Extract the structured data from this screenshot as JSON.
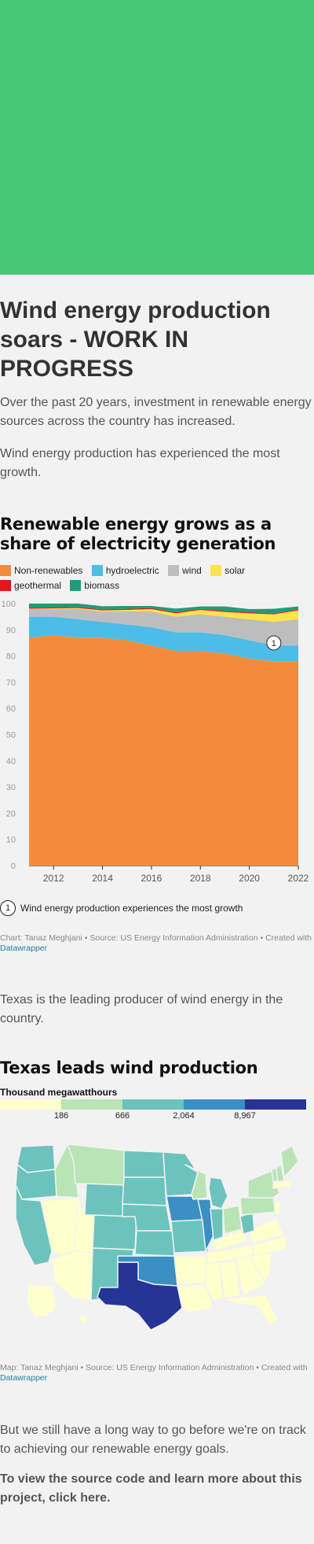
{
  "article": {
    "headline": "Wind energy production soars - WORK IN PROGRESS",
    "para1": "Over the past 20 years, investment in renewable energy sources across the country has increased.",
    "para2": "Wind energy production has experienced the most growth.",
    "para3": "Texas is the leading producer of wind energy in the country.",
    "para4": "But we still have a long way to go before we're on track to achieving our renewable energy goals.",
    "para5": "To view the source code and learn more about this project, click here."
  },
  "chart1": {
    "title": "Renewable energy grows as a share of electricity generation",
    "legend": [
      {
        "label": "Non-renewables",
        "color": "#f28c3c"
      },
      {
        "label": "hydroelectric",
        "color": "#4cbde6"
      },
      {
        "label": "wind",
        "color": "#bdbdbd"
      },
      {
        "label": "solar",
        "color": "#fbe34a"
      },
      {
        "label": "geothermal",
        "color": "#e8141b"
      },
      {
        "label": "biomass",
        "color": "#1f9c7c"
      }
    ],
    "annotation_number": "1",
    "annotation_text": "Wind energy production experiences the most growth",
    "credit_text": "Chart: Tanaz Meghjani • Source: US Energy Information Administration • Created with ",
    "credit_link": "Datawrapper"
  },
  "chart_data": [
    {
      "type": "area",
      "title": "Renewable energy grows as a share of electricity generation",
      "xlabel": "",
      "ylabel": "",
      "xlim": [
        2011,
        2022
      ],
      "ylim": [
        0,
        100
      ],
      "x_ticks": [
        "2012",
        "2014",
        "2016",
        "2018",
        "2020",
        "2022"
      ],
      "y_ticks": [
        "0",
        "10",
        "20",
        "30",
        "40",
        "50",
        "60",
        "70",
        "80",
        "90",
        "100"
      ],
      "grid": true,
      "legend_position": "top",
      "x": [
        2011,
        2012,
        2013,
        2014,
        2015,
        2016,
        2017,
        2018,
        2019,
        2020,
        2021,
        2022
      ],
      "series": [
        {
          "name": "Non-renewables",
          "color": "#f28c3c",
          "values": [
            87,
            88,
            87,
            87,
            86,
            84,
            82,
            82,
            81,
            79,
            78,
            78
          ]
        },
        {
          "name": "hydroelectric",
          "color": "#4cbde6",
          "values": [
            8,
            7,
            7,
            6,
            6,
            7,
            7,
            7,
            7,
            7,
            6,
            6
          ]
        },
        {
          "name": "wind",
          "color": "#bdbdbd",
          "values": [
            3,
            3,
            4,
            4,
            5,
            6,
            6,
            7,
            7,
            8,
            9,
            10
          ]
        },
        {
          "name": "solar",
          "color": "#fbe34a",
          "values": [
            0.1,
            0.2,
            0.3,
            0.4,
            0.6,
            0.9,
            1.3,
            1.6,
            1.8,
            2.3,
            2.9,
            3.4
          ]
        },
        {
          "name": "geothermal",
          "color": "#e8141b",
          "values": [
            0.4,
            0.4,
            0.4,
            0.4,
            0.4,
            0.4,
            0.4,
            0.4,
            0.4,
            0.4,
            0.4,
            0.4
          ]
        },
        {
          "name": "biomass",
          "color": "#1f9c7c",
          "values": [
            1.5,
            1.4,
            1.3,
            1.2,
            1.1,
            0.8,
            1.4,
            0.9,
            1.7,
            1.2,
            1.7,
            1.1
          ]
        }
      ],
      "annotations": [
        {
          "label": "1",
          "x": 2021,
          "y": 85
        }
      ]
    }
  ],
  "map": {
    "title": "Texas leads wind production",
    "subtitle": "Thousand megawatthours",
    "scale_colors": [
      "#ffffcc",
      "#b9e4b6",
      "#6cc3bd",
      "#3a8fc4",
      "#253495"
    ],
    "scale_labels": [
      "186",
      "666",
      "2,064",
      "8,967"
    ],
    "credit_text": "Map: Tanaz Meghjani • Source: US Energy Information Administration • Created with ",
    "credit_link": "Datawrapper"
  }
}
